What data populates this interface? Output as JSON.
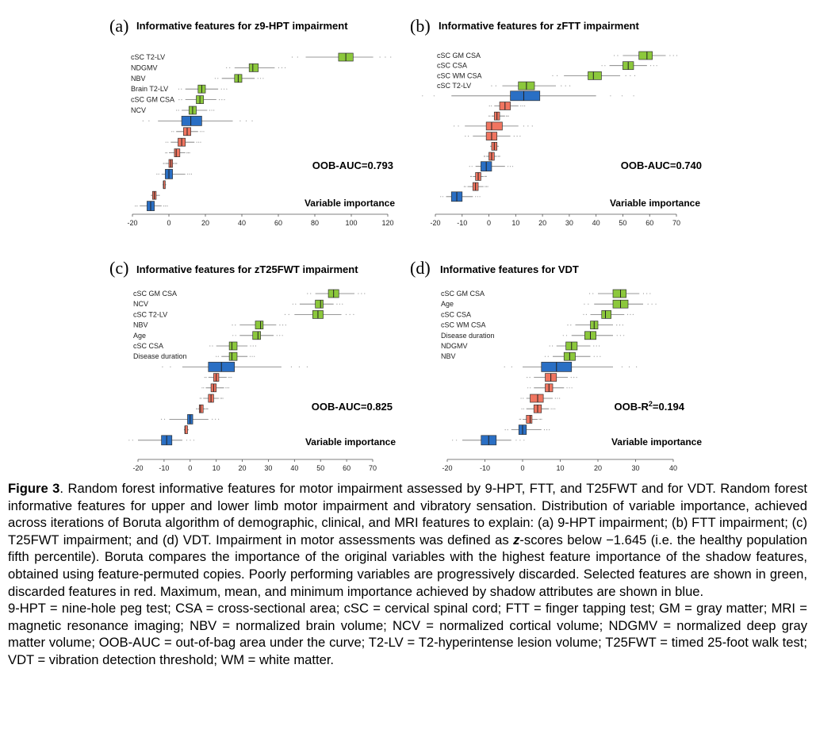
{
  "colors": {
    "green": "#8cc83c",
    "red": "#f07560",
    "blue": "#2a6fc4",
    "outline": "#333333"
  },
  "chart_data": [
    {
      "id": "a",
      "type": "boxplot",
      "panel_label": "(a)",
      "title": "Informative features for z9-HPT impairment",
      "metric": "OOB-AUC=0.793",
      "xlabel": "Variable importance",
      "xlim": [
        -20,
        120
      ],
      "ticks": [
        -20,
        0,
        20,
        40,
        60,
        80,
        100,
        120
      ],
      "tick_labels": [
        "-20",
        "0",
        "20",
        "40",
        "60",
        "80",
        "100",
        "120"
      ],
      "boxes": [
        {
          "label": "cSC T2-LV",
          "color": "green",
          "min": 75,
          "q1": 93,
          "med": 97,
          "q3": 101,
          "max": 112
        },
        {
          "label": "NDGMV",
          "color": "green",
          "min": 36,
          "q1": 44,
          "med": 46,
          "q3": 49,
          "max": 58
        },
        {
          "label": "NBV",
          "color": "green",
          "min": 29,
          "q1": 36,
          "med": 38,
          "q3": 40,
          "max": 47
        },
        {
          "label": "Brain T2-LV",
          "color": "green",
          "min": 9,
          "q1": 16,
          "med": 18,
          "q3": 20,
          "max": 27
        },
        {
          "label": "cSC GM CSA",
          "color": "green",
          "min": 9,
          "q1": 15,
          "med": 17,
          "q3": 19,
          "max": 26
        },
        {
          "label": "NCV",
          "color": "green",
          "min": 7,
          "q1": 11,
          "med": 13,
          "q3": 15,
          "max": 21
        },
        {
          "label": "",
          "color": "blue",
          "min": -6,
          "q1": 7,
          "med": 12,
          "q3": 18,
          "max": 35
        },
        {
          "label": "",
          "color": "red",
          "min": 4,
          "q1": 8,
          "med": 10,
          "q3": 12,
          "max": 16
        },
        {
          "label": "",
          "color": "red",
          "min": 1,
          "q1": 5,
          "med": 7,
          "q3": 9,
          "max": 14
        },
        {
          "label": "",
          "color": "red",
          "min": 0,
          "q1": 3,
          "med": 4,
          "q3": 6,
          "max": 9
        },
        {
          "label": "",
          "color": "red",
          "min": -2,
          "q1": 0,
          "med": 1,
          "q3": 2,
          "max": 3
        },
        {
          "label": "",
          "color": "blue",
          "min": -4,
          "q1": -2,
          "med": 0,
          "q3": 2,
          "max": 9
        },
        {
          "label": "",
          "color": "red",
          "min": -3,
          "q1": -3,
          "med": -3,
          "q3": -2,
          "max": -2
        },
        {
          "label": "",
          "color": "red",
          "min": -9,
          "q1": -9,
          "med": -8,
          "q3": -7,
          "max": -6
        },
        {
          "label": "",
          "color": "blue",
          "min": -16,
          "q1": -12,
          "med": -10,
          "q3": -8,
          "max": -4
        }
      ]
    },
    {
      "id": "b",
      "type": "boxplot",
      "panel_label": "(b)",
      "title": "Informative features for zFTT impairment",
      "metric": "OOB-AUC=0.740",
      "xlabel": "Variable importance",
      "xlim": [
        -20,
        70
      ],
      "ticks": [
        -20,
        -10,
        0,
        10,
        20,
        30,
        40,
        50,
        60,
        70
      ],
      "tick_labels": [
        "-20",
        "-10",
        "0",
        "10",
        "20",
        "30",
        "40",
        "50",
        "60",
        "70"
      ],
      "boxes": [
        {
          "label": "cSC GM CSA",
          "color": "green",
          "min": 50,
          "q1": 56,
          "med": 59,
          "q3": 61,
          "max": 66
        },
        {
          "label": "cSC CSA",
          "color": "green",
          "min": 45,
          "q1": 50,
          "med": 52,
          "q3": 54,
          "max": 59
        },
        {
          "label": "cSC WM CSA",
          "color": "green",
          "min": 28,
          "q1": 37,
          "med": 39,
          "q3": 42,
          "max": 49
        },
        {
          "label": "cSC T2-LV",
          "color": "green",
          "min": 5,
          "q1": 11,
          "med": 14,
          "q3": 17,
          "max": 25
        },
        {
          "label": "",
          "color": "blue",
          "min": -14,
          "q1": 8,
          "med": 13,
          "q3": 19,
          "max": 40
        },
        {
          "label": "",
          "color": "red",
          "min": 2,
          "q1": 4,
          "med": 6,
          "q3": 8,
          "max": 11
        },
        {
          "label": "",
          "color": "red",
          "min": 1,
          "q1": 2,
          "med": 3,
          "q3": 4,
          "max": 6
        },
        {
          "label": "",
          "color": "red",
          "min": -9,
          "q1": -1,
          "med": 1,
          "q3": 5,
          "max": 11
        },
        {
          "label": "",
          "color": "red",
          "min": -6,
          "q1": -1,
          "med": 1,
          "q3": 3,
          "max": 8
        },
        {
          "label": "",
          "color": "red",
          "min": 1,
          "q1": 1,
          "med": 2,
          "q3": 3,
          "max": 3
        },
        {
          "label": "",
          "color": "red",
          "min": -1,
          "q1": 0,
          "med": 1,
          "q3": 2,
          "max": 3
        },
        {
          "label": "",
          "color": "blue",
          "min": -5,
          "q1": -3,
          "med": -1,
          "q3": 1,
          "max": 6
        },
        {
          "label": "",
          "color": "red",
          "min": -6,
          "q1": -5,
          "med": -4,
          "q3": -3,
          "max": -2
        },
        {
          "label": "",
          "color": "red",
          "min": -8,
          "q1": -6,
          "med": -5,
          "q3": -4,
          "max": -2
        },
        {
          "label": "",
          "color": "blue",
          "min": -16,
          "q1": -14,
          "med": -12,
          "q3": -10,
          "max": -6
        }
      ]
    },
    {
      "id": "c",
      "type": "boxplot",
      "panel_label": "(c)",
      "title": "Informative features for zT25FWT impairment",
      "metric": "OOB-AUC=0.825",
      "xlabel": "Variable importance",
      "xlim": [
        -20,
        70
      ],
      "ticks": [
        -20,
        -10,
        0,
        10,
        20,
        30,
        40,
        50,
        60,
        70
      ],
      "tick_labels": [
        "-20",
        "-10",
        "0",
        "10",
        "20",
        "30",
        "40",
        "50",
        "60",
        "70"
      ],
      "boxes": [
        {
          "label": "cSC GM CSA",
          "color": "green",
          "min": 48,
          "q1": 53,
          "med": 55,
          "q3": 57,
          "max": 63
        },
        {
          "label": "NCV",
          "color": "green",
          "min": 42,
          "q1": 48,
          "med": 50,
          "q3": 51,
          "max": 55
        },
        {
          "label": "cSC T2-LV",
          "color": "green",
          "min": 40,
          "q1": 47,
          "med": 49,
          "q3": 51,
          "max": 58
        },
        {
          "label": "NBV",
          "color": "green",
          "min": 19,
          "q1": 25,
          "med": 27,
          "q3": 28,
          "max": 33
        },
        {
          "label": "Age",
          "color": "green",
          "min": 19,
          "q1": 24,
          "med": 26,
          "q3": 27,
          "max": 32
        },
        {
          "label": "cSC CSA",
          "color": "green",
          "min": 10,
          "q1": 15,
          "med": 16,
          "q3": 18,
          "max": 22
        },
        {
          "label": "Disease duration",
          "color": "green",
          "min": 12,
          "q1": 15,
          "med": 16,
          "q3": 18,
          "max": 22
        },
        {
          "label": "",
          "color": "blue",
          "min": -3,
          "q1": 7,
          "med": 12,
          "q3": 17,
          "max": 35
        },
        {
          "label": "",
          "color": "red",
          "min": 7,
          "q1": 9,
          "med": 10,
          "q3": 11,
          "max": 14
        },
        {
          "label": "",
          "color": "red",
          "min": 6,
          "q1": 8,
          "med": 9,
          "q3": 10,
          "max": 13
        },
        {
          "label": "",
          "color": "red",
          "min": 5,
          "q1": 7,
          "med": 8,
          "q3": 9,
          "max": 11
        },
        {
          "label": "",
          "color": "red",
          "min": 3,
          "q1": 3.5,
          "med": 4,
          "q3": 5,
          "max": 6
        },
        {
          "label": "",
          "color": "blue",
          "min": -8,
          "q1": -1,
          "med": 0,
          "q3": 1,
          "max": 7
        },
        {
          "label": "",
          "color": "red",
          "min": -2,
          "q1": -2,
          "med": -2,
          "q3": -1,
          "max": -1
        },
        {
          "label": "",
          "color": "blue",
          "min": -20,
          "q1": -11,
          "med": -9,
          "q3": -7,
          "max": -3
        }
      ]
    },
    {
      "id": "d",
      "type": "boxplot",
      "panel_label": "(d)",
      "title": "Informative features for VDT",
      "metric_prefix": "OOB-R",
      "metric_sup": "2",
      "metric_suffix": "=0.194",
      "xlabel": "Variable importance",
      "xlim": [
        -20,
        40
      ],
      "ticks": [
        -20,
        -10,
        0,
        10,
        20,
        30,
        40
      ],
      "tick_labels": [
        "-20",
        "-10",
        "0",
        "10",
        "20",
        "30",
        "40"
      ],
      "boxes": [
        {
          "label": "cSC GM CSA",
          "color": "green",
          "min": 20,
          "q1": 24,
          "med": 26,
          "q3": 27.5,
          "max": 31
        },
        {
          "label": "Age",
          "color": "green",
          "min": 19,
          "q1": 24,
          "med": 26,
          "q3": 28,
          "max": 32
        },
        {
          "label": "cSC CSA",
          "color": "green",
          "min": 18,
          "q1": 21,
          "med": 22,
          "q3": 23.5,
          "max": 27
        },
        {
          "label": "cSC WM CSA",
          "color": "green",
          "min": 14,
          "q1": 18,
          "med": 19,
          "q3": 20,
          "max": 24
        },
        {
          "label": "Disease duration",
          "color": "green",
          "min": 13,
          "q1": 16.5,
          "med": 18,
          "q3": 19.5,
          "max": 24
        },
        {
          "label": "NDGMV",
          "color": "green",
          "min": 9,
          "q1": 11.5,
          "med": 13,
          "q3": 14.5,
          "max": 18
        },
        {
          "label": "NBV",
          "color": "green",
          "min": 8,
          "q1": 11,
          "med": 12.5,
          "q3": 14,
          "max": 18
        },
        {
          "label": "",
          "color": "blue",
          "min": 0,
          "q1": 5,
          "med": 9,
          "q3": 13,
          "max": 24
        },
        {
          "label": "",
          "color": "red",
          "min": 3,
          "q1": 6,
          "med": 7.5,
          "q3": 9,
          "max": 12
        },
        {
          "label": "",
          "color": "red",
          "min": 3,
          "q1": 6,
          "med": 7,
          "q3": 8,
          "max": 11
        },
        {
          "label": "",
          "color": "red",
          "min": 1,
          "q1": 2,
          "med": 4,
          "q3": 5.5,
          "max": 8
        },
        {
          "label": "",
          "color": "red",
          "min": 1,
          "q1": 3,
          "med": 4,
          "q3": 5,
          "max": 7
        },
        {
          "label": "",
          "color": "red",
          "min": 0,
          "q1": 1,
          "med": 2,
          "q3": 2.5,
          "max": 4
        },
        {
          "label": "",
          "color": "blue",
          "min": -3,
          "q1": -1,
          "med": 0,
          "q3": 1,
          "max": 5
        },
        {
          "label": "",
          "color": "blue",
          "min": -16,
          "q1": -11,
          "med": -9,
          "q3": -7,
          "max": -3
        }
      ]
    }
  ],
  "caption": {
    "fig_label": "Figure 3",
    "p1_text": ". Random forest informative features for motor impairment assessed by 9-HPT, FTT, and T25FWT and for VDT. Random forest informative features for upper and lower limb motor impairment and vibratory sensation. Distribution of variable importance, achieved across iterations of Boruta algorithm of demographic, clinical, and MRI features to explain: (a) 9-HPT impairment; (b) FTT impairment; (c) T25FWT impairment; and (d) VDT. Impairment in motor assessments was defined as ",
    "p1_bold": "z",
    "p1_rest": "-scores below −1.645 (i.e. the healthy population fifth percentile). Boruta compares the importance of the original variables with the highest feature importance of the shadow features, obtained using feature-permuted copies. Poorly performing variables are progressively discarded. Selected features are shown in green, discarded features in red. Maximum, mean, and minimum importance achieved by shadow attributes are shown in blue.",
    "p2": "9-HPT = nine-hole peg test; CSA = cross-sectional area; cSC = cervical spinal cord; FTT = finger tapping test; GM = gray matter; MRI = magnetic resonance imaging; NBV = normalized brain volume; NCV = normalized cortical volume; NDGMV = normalized deep gray matter volume; OOB-AUC = out-of-bag area under the curve; T2-LV = T2-hyperintense lesion volume; T25FWT = timed 25-foot walk test; VDT = vibration detection threshold; WM = white matter."
  }
}
